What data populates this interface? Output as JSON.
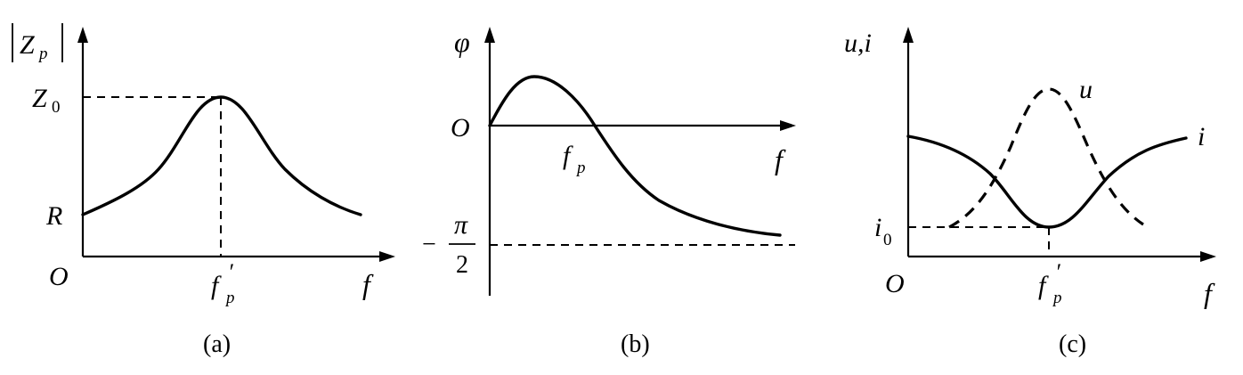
{
  "panel_a": {
    "y_label_main": "Z",
    "y_label_sub": "p",
    "z0_main": "Z",
    "z0_sub": "0",
    "r_label": "R",
    "origin": "O",
    "peak_main": "f",
    "peak_prime": "′",
    "peak_sub": "p",
    "x_label": "f",
    "caption": "(a)"
  },
  "panel_b": {
    "y_label": "φ",
    "origin": "O",
    "fp_main": "f",
    "fp_sub": "p",
    "x_label": "f",
    "minus": "−",
    "pi": "π",
    "two": "2",
    "caption": "(b)"
  },
  "panel_c": {
    "y_label": "u,i",
    "u_label": "u",
    "i_label": "i",
    "i0_main": "i",
    "i0_sub": "0",
    "origin": "O",
    "peak_main": "f",
    "peak_prime": "′",
    "peak_sub": "p",
    "x_label": "f",
    "caption": "(c)"
  }
}
